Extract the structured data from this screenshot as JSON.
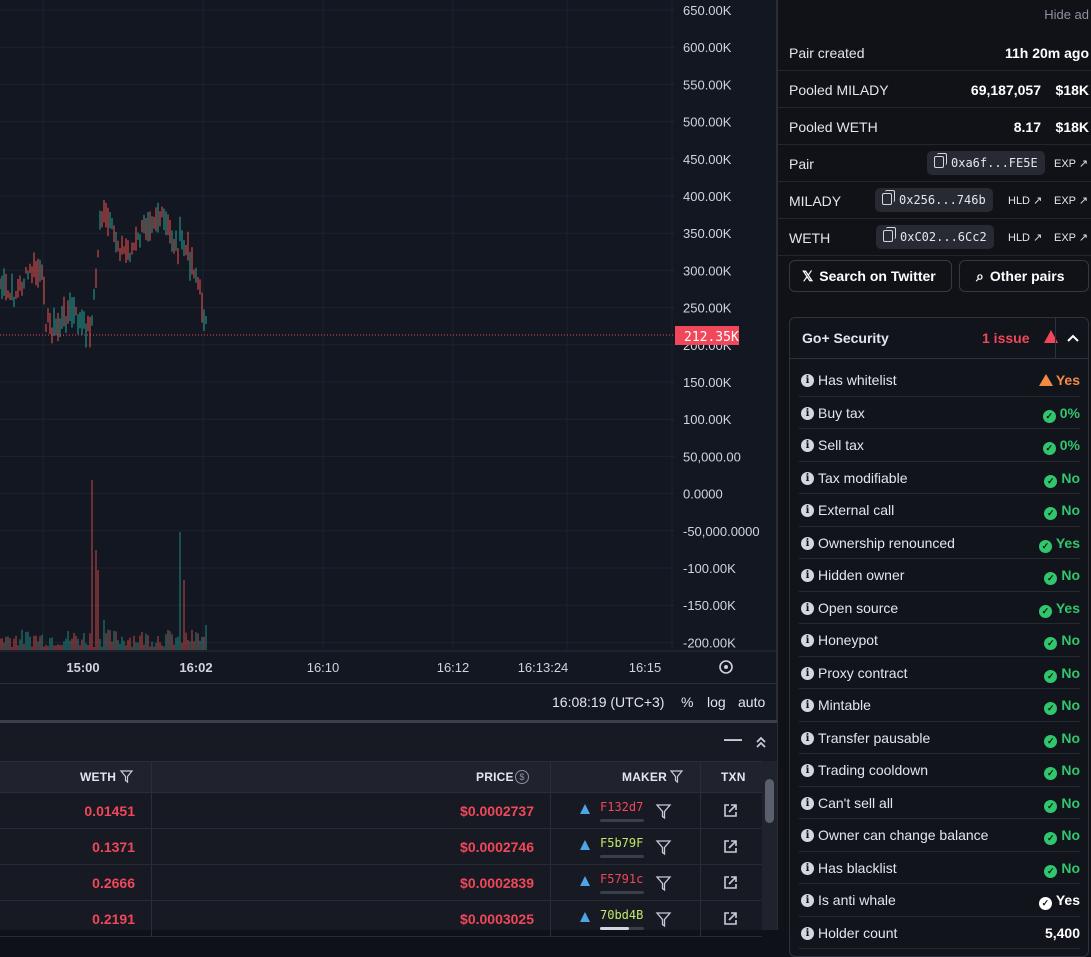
{
  "chart": {
    "y_labels": [
      "650.00K",
      "600.00K",
      "550.00K",
      "500.00K",
      "450.00K",
      "400.00K",
      "350.00K",
      "300.00K",
      "250.00K",
      "200.00K",
      "150.00K",
      "100.00K",
      "50,000.00",
      "0.0000",
      "-50,000.0000",
      "-100.00K",
      "-150.00K",
      "-200.00K"
    ],
    "x_labels": [
      "15:00",
      "16:02",
      "16:10",
      "16:12",
      "16:13:24",
      "16:15"
    ],
    "price_tag": "212.35K",
    "colors": {
      "up": "#26a69a",
      "down": "#ef5350",
      "price": "#f0475a"
    }
  },
  "chart_toolbar": {
    "time": "16:08:19 (UTC+3)",
    "percent": "%",
    "log": "log",
    "auto": "auto"
  },
  "table": {
    "headers": {
      "weth": "WETH",
      "price": "PRICE",
      "maker": "MAKER",
      "txn": "TXN"
    },
    "rows": [
      {
        "weth": "0.01451",
        "price": "$0.0002737",
        "maker": "F132d7",
        "maker_color": "#f0475a",
        "fill": 0.0
      },
      {
        "weth": "0.1371",
        "price": "$0.0002746",
        "maker": "F5b79F",
        "maker_color": "#c4e86a",
        "fill": 0.0
      },
      {
        "weth": "0.2666",
        "price": "$0.0002839",
        "maker": "F5791c",
        "maker_color": "#f0475a",
        "fill": 0.0
      },
      {
        "weth": "0.2191",
        "price": "$0.0003025",
        "maker": "70bd4B",
        "maker_color": "#c4e86a",
        "fill": 0.65
      }
    ]
  },
  "side": {
    "hide_ad": "Hide ad",
    "pair_created_label": "Pair created",
    "pair_created_value": "11h 20m ago",
    "pooled_milady_label": "Pooled MILADY",
    "pooled_milady_amount": "69,187,057",
    "pooled_milady_usd": "$18K",
    "pooled_weth_label": "Pooled WETH",
    "pooled_weth_amount": "8.17",
    "pooled_weth_usd": "$18K",
    "pair_label": "Pair",
    "pair_addr": "0xa6f...FE5E",
    "milady_label": "MILADY",
    "milady_addr": "0x256...746b",
    "weth_label": "WETH",
    "weth_addr": "0xC02...6Cc2",
    "hld": "HLD",
    "exp": "EXP",
    "search_twitter": "Search on Twitter",
    "other_pairs": "Other pairs"
  },
  "security": {
    "title": "Go+ Security",
    "issues": "1 issue",
    "items": [
      {
        "label": "Has whitelist",
        "value": "Yes",
        "status": "warn"
      },
      {
        "label": "Buy tax",
        "value": "0%",
        "status": "ok"
      },
      {
        "label": "Sell tax",
        "value": "0%",
        "status": "ok"
      },
      {
        "label": "Tax modifiable",
        "value": "No",
        "status": "ok"
      },
      {
        "label": "External call",
        "value": "No",
        "status": "ok"
      },
      {
        "label": "Ownership renounced",
        "value": "Yes",
        "status": "ok"
      },
      {
        "label": "Hidden owner",
        "value": "No",
        "status": "ok"
      },
      {
        "label": "Open source",
        "value": "Yes",
        "status": "ok"
      },
      {
        "label": "Honeypot",
        "value": "No",
        "status": "ok"
      },
      {
        "label": "Proxy contract",
        "value": "No",
        "status": "ok"
      },
      {
        "label": "Mintable",
        "value": "No",
        "status": "ok"
      },
      {
        "label": "Transfer pausable",
        "value": "No",
        "status": "ok"
      },
      {
        "label": "Trading cooldown",
        "value": "No",
        "status": "ok"
      },
      {
        "label": "Can't sell all",
        "value": "No",
        "status": "ok"
      },
      {
        "label": "Owner can change balance",
        "value": "No",
        "status": "ok"
      },
      {
        "label": "Has blacklist",
        "value": "No",
        "status": "ok"
      },
      {
        "label": "Is anti whale",
        "value": "Yes",
        "status": "white"
      },
      {
        "label": "Holder count",
        "value": "5,400",
        "status": "white"
      }
    ]
  }
}
